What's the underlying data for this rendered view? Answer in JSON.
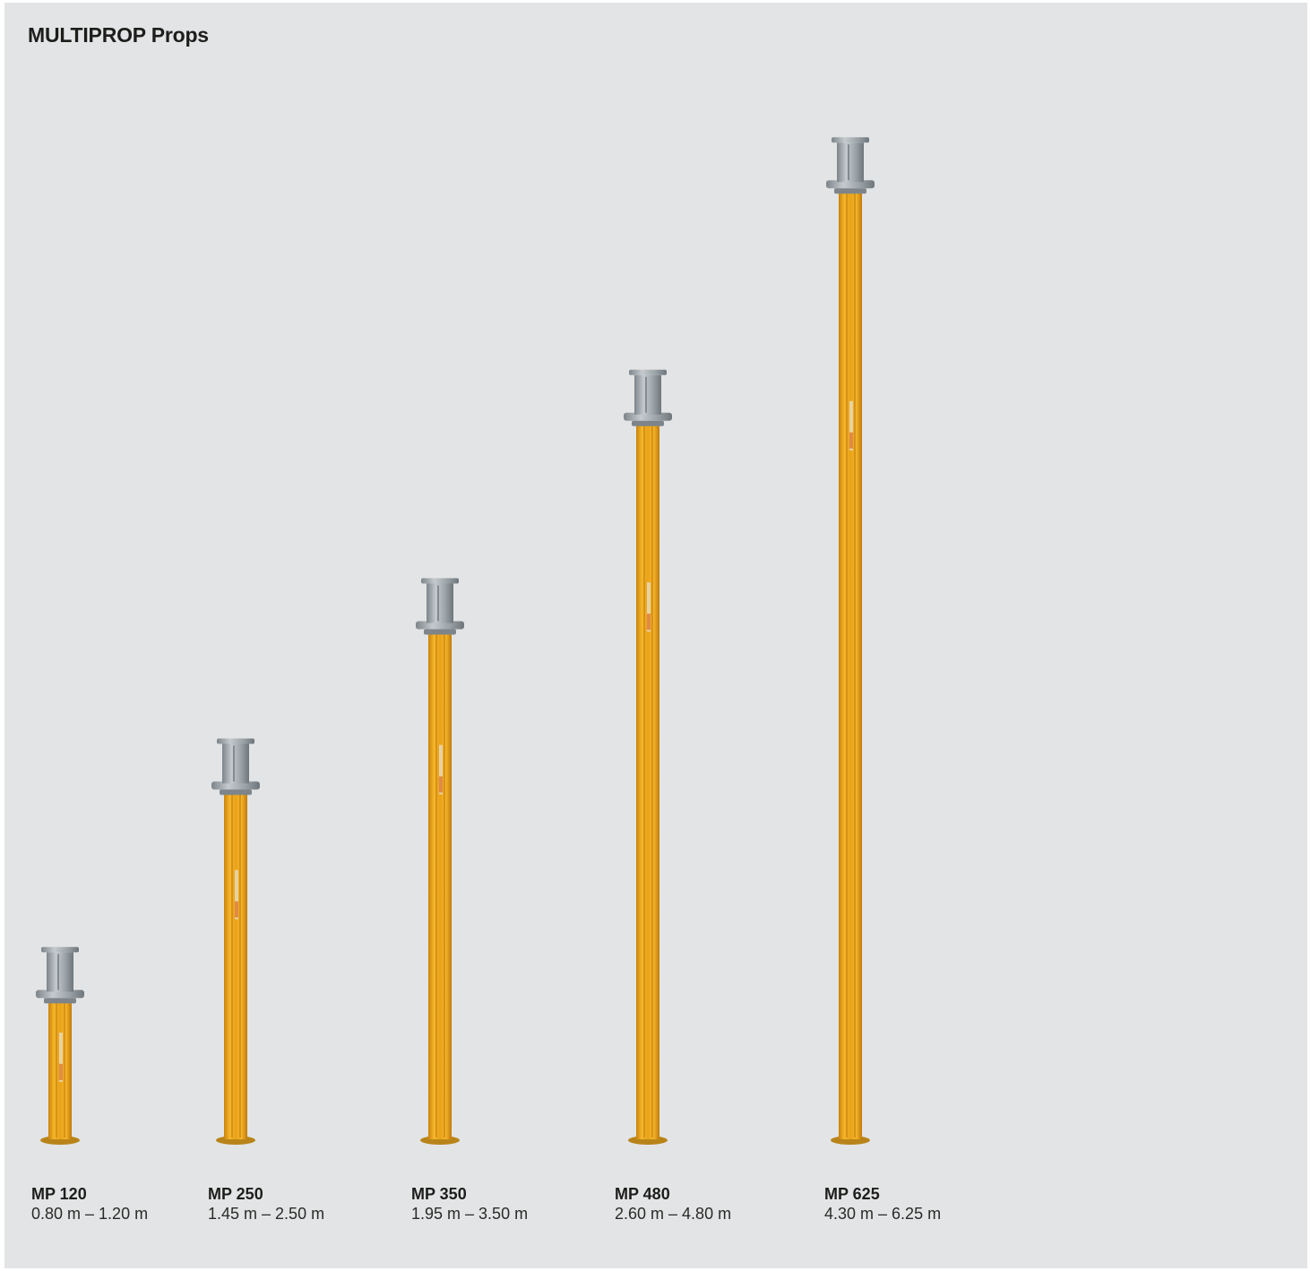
{
  "title": "MULTIPROP Props",
  "colors": {
    "background": "#e3e4e5",
    "prop_yellow": "#f2ad1d",
    "prop_steel": "#a7aeb3"
  },
  "icon": "prop-icon",
  "props": [
    {
      "model": "MP 120",
      "range": "0.80 m – 1.20 m",
      "max_height_m": 1.2
    },
    {
      "model": "MP 250",
      "range": "1.45 m – 2.50 m",
      "max_height_m": 2.5
    },
    {
      "model": "MP 350",
      "range": "1.95 m – 3.50 m",
      "max_height_m": 3.5
    },
    {
      "model": "MP 480",
      "range": "2.60 m – 4.80 m",
      "max_height_m": 4.8
    },
    {
      "model": "MP 625",
      "range": "4.30 m – 6.25 m",
      "max_height_m": 6.25
    }
  ]
}
